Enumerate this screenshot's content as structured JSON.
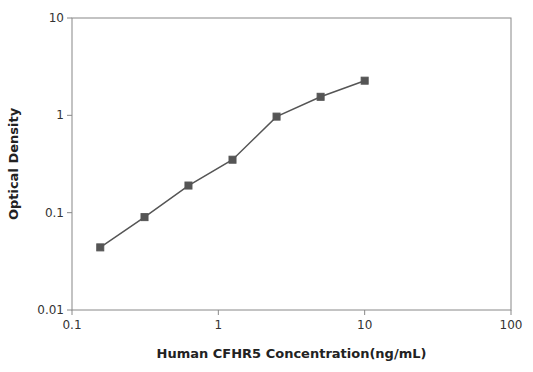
{
  "chart_data": {
    "type": "line",
    "x": [
      0.156,
      0.313,
      0.625,
      1.25,
      2.5,
      5.0,
      10.0
    ],
    "values": [
      0.044,
      0.09,
      0.19,
      0.35,
      0.97,
      1.55,
      2.27
    ],
    "xlabel": "Human CFHR5 Concentration(ng/mL)",
    "ylabel": "Optical Density",
    "xlim": [
      0.1,
      100
    ],
    "ylim": [
      0.01,
      10
    ],
    "xticks": [
      0.1,
      1,
      10,
      100
    ],
    "yticks": [
      0.01,
      0.1,
      1,
      10
    ],
    "log": true,
    "grid": false,
    "color": "#555555",
    "marker": "square"
  }
}
